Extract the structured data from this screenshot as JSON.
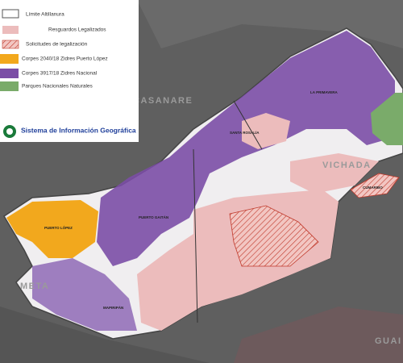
{
  "legend": {
    "items": [
      {
        "label": "Límite Altillanura"
      },
      {
        "label": "Resguardos Legalizados"
      },
      {
        "label": "Solicitudes de legalización"
      },
      {
        "label": "Corpes 2040/18 Zidres Puerto López"
      },
      {
        "label": "Corpes 3917/18 Zidres Nacional"
      },
      {
        "label": "Parques Nacionales Naturales"
      }
    ]
  },
  "logo": {
    "title": "Sistema de Información Geográfica"
  },
  "map": {
    "regions": [
      "CASANARE",
      "VICHADA",
      "META",
      "GUAI"
    ],
    "municipalities": [
      "LA PRIMAVERA",
      "SANTA ROSALÍA",
      "CUMARIBO",
      "PUERTO GAITÁN",
      "PUERTO LÓPEZ",
      "MAPIRIPÁN"
    ]
  }
}
